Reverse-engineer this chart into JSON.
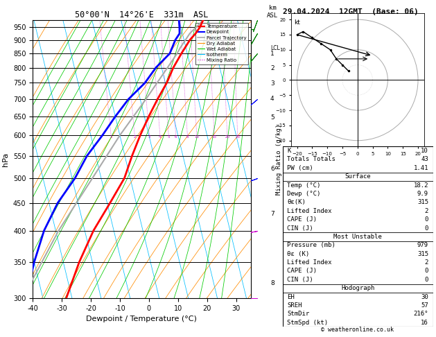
{
  "title_left": "50°00'N  14°26'E  331m  ASL",
  "title_right": "29.04.2024  12GMT  (Base: 06)",
  "xlabel": "Dewpoint / Temperature (°C)",
  "ylabel_left": "hPa",
  "pressure_ticks": [
    300,
    350,
    400,
    450,
    500,
    550,
    600,
    650,
    700,
    750,
    800,
    850,
    900,
    950
  ],
  "temp_xticks": [
    -40,
    -30,
    -20,
    -10,
    0,
    10,
    20,
    30
  ],
  "isotherm_color": "#00bfff",
  "dry_adiabat_color": "#ff8c00",
  "wet_adiabat_color": "#00cc00",
  "mixing_ratio_color": "#cc00cc",
  "temp_color": "#ff0000",
  "dewp_color": "#0000ff",
  "parcel_color": "#aaaaaa",
  "temperature_data": {
    "pressure": [
      979,
      950,
      925,
      900,
      850,
      800,
      750,
      700,
      650,
      600,
      550,
      500,
      450,
      400,
      350,
      300
    ],
    "temp": [
      18.2,
      16.5,
      14.5,
      12.0,
      8.0,
      4.0,
      0.5,
      -4.0,
      -8.5,
      -13.0,
      -17.5,
      -22.0,
      -29.0,
      -37.0,
      -44.5,
      -52.0
    ]
  },
  "dewpoint_data": {
    "pressure": [
      979,
      950,
      925,
      900,
      850,
      800,
      750,
      700,
      650,
      600,
      550,
      500,
      450,
      400,
      350,
      300
    ],
    "dewp": [
      9.9,
      9.5,
      9.0,
      7.0,
      4.0,
      -2.0,
      -7.0,
      -14.0,
      -20.0,
      -26.0,
      -33.0,
      -39.0,
      -47.0,
      -54.0,
      -60.0,
      -66.0
    ]
  },
  "parcel_data": {
    "pressure": [
      979,
      925,
      870,
      850,
      800,
      700,
      600,
      500,
      400,
      300
    ],
    "temp": [
      18.2,
      12.5,
      8.0,
      6.5,
      2.0,
      -8.0,
      -20.0,
      -33.0,
      -49.0,
      -67.0
    ]
  },
  "lcl_pressure": 870,
  "mixing_ratio_values": [
    1,
    2,
    3,
    4,
    5,
    6,
    8,
    10,
    15,
    20,
    25
  ],
  "km_pressures": [
    850,
    797,
    747,
    700,
    647,
    520,
    430,
    320
  ],
  "km_labels": [
    "1",
    "2",
    "3",
    "4",
    "5",
    "6",
    "7",
    "8"
  ],
  "lcl_km_pressure": 870,
  "wind_barb_data": [
    {
      "pressure": 979,
      "speed": 7,
      "dir": 200,
      "color": "#008000"
    },
    {
      "pressure": 925,
      "speed": 10,
      "dir": 210,
      "color": "#008000"
    },
    {
      "pressure": 850,
      "speed": 13,
      "dir": 220,
      "color": "#008000"
    },
    {
      "pressure": 700,
      "speed": 15,
      "dir": 230,
      "color": "#0000ff"
    },
    {
      "pressure": 500,
      "speed": 20,
      "dir": 250,
      "color": "#0000ff"
    },
    {
      "pressure": 400,
      "speed": 25,
      "dir": 260,
      "color": "#cc00cc"
    },
    {
      "pressure": 300,
      "speed": 30,
      "dir": 270,
      "color": "#cc00cc"
    }
  ],
  "table_data": {
    "K": "10",
    "Totals_Totals": "43",
    "PW_cm": "1.41",
    "Surface_Temp_C": "18.2",
    "Surface_Dewp_C": "9.9",
    "Surface_ThetaE_K": "315",
    "Surface_LI": "2",
    "Surface_CAPE": "0",
    "Surface_CIN": "0",
    "MU_Pressure_mb": "979",
    "MU_ThetaE_K": "315",
    "MU_LI": "2",
    "MU_CAPE": "0",
    "MU_CIN": "0",
    "Hodo_EH": "30",
    "Hodo_SREH": "57",
    "Hodo_StmDir": "216°",
    "Hodo_StmSpd_kt": "16"
  },
  "copyright": "© weatheronline.co.uk",
  "hodo_u": [
    -3,
    -5,
    -7,
    -9,
    -12,
    -15,
    -18,
    -20
  ],
  "hodo_v": [
    3,
    5,
    7,
    10,
    12,
    14,
    16,
    15
  ],
  "hodo_storm_u": 5,
  "hodo_storm_v": 8
}
